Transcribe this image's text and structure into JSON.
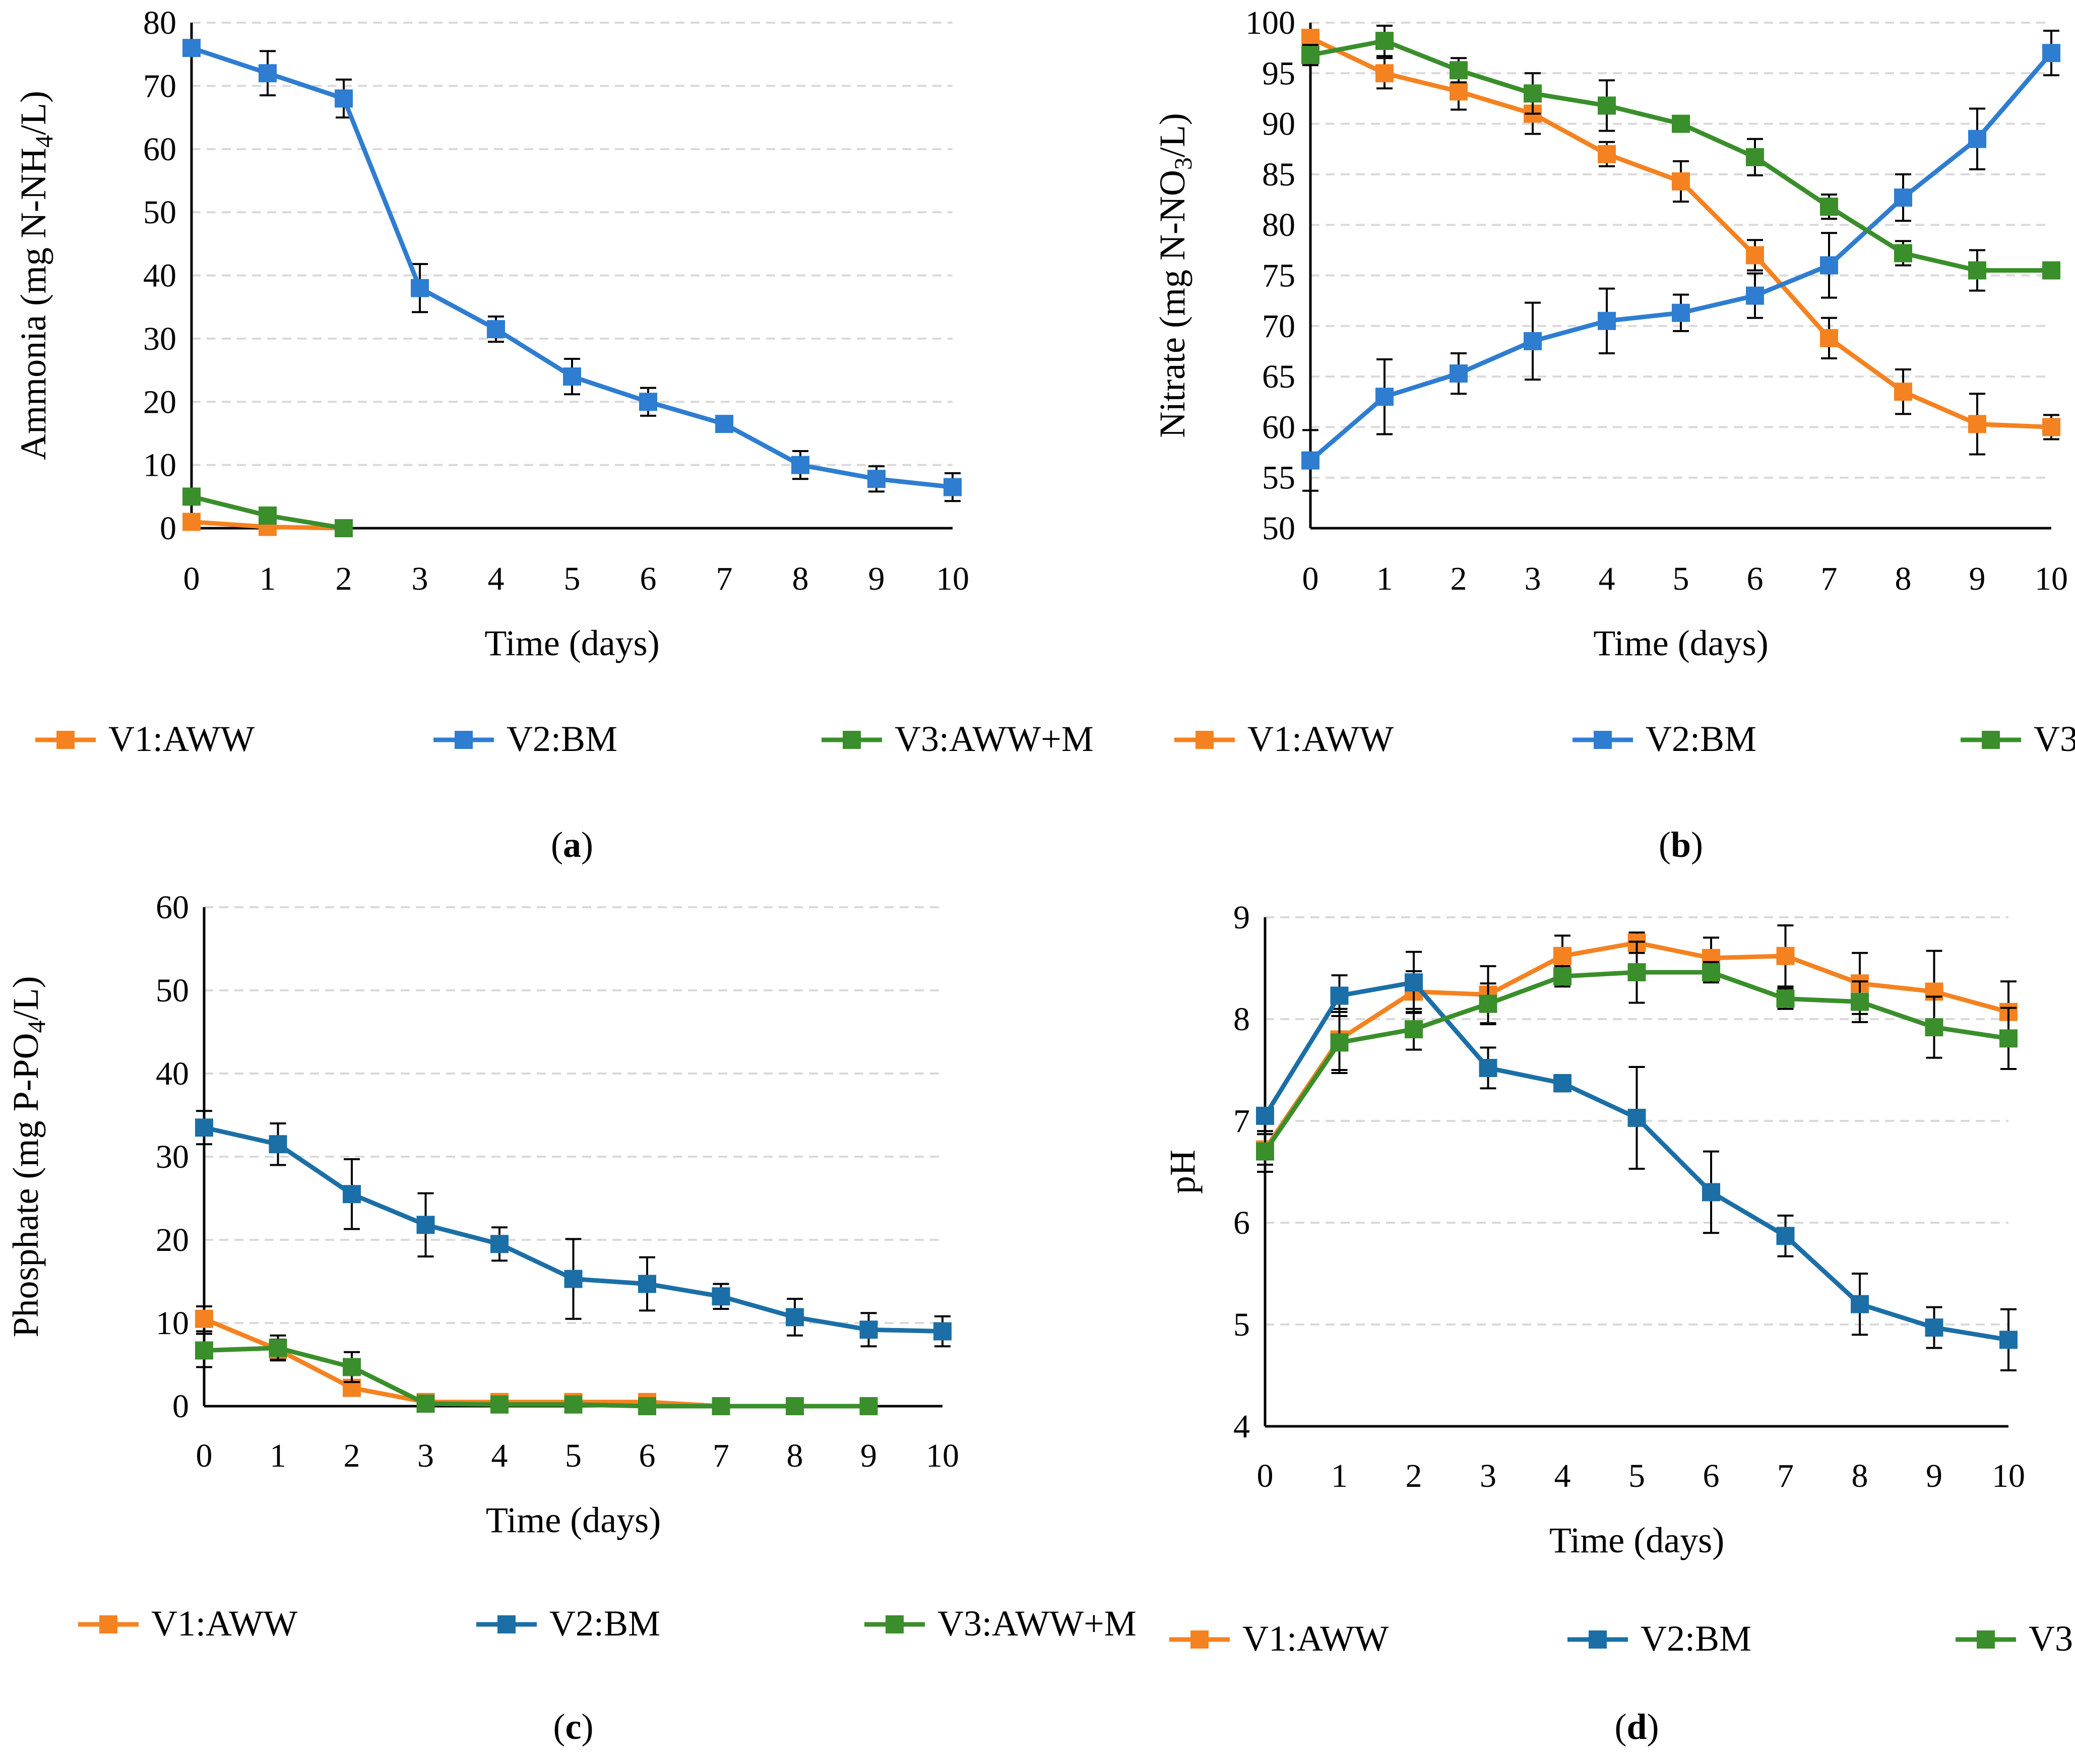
{
  "figure": {
    "legend": [
      "V1:AWW",
      "V2:BM",
      "V3:AWW+M"
    ],
    "colors": {
      "V1:AWW": "#f58220",
      "V2:BM": "#2e7dd1",
      "V2:BM_dark": "#1b6fa6",
      "V3:AWW+M": "#3a8e2b"
    }
  },
  "chart_data": [
    {
      "type": "line",
      "panel_label": "a",
      "xlabel": "Time (days)",
      "ylabel": "Ammonia (mg N-NH4/L)",
      "ylabel_main": "Ammonia (mg N-NH",
      "ylabel_sub": "4",
      "ylabel_tail": "/L)",
      "xlim": [
        0,
        10
      ],
      "ylim": [
        0,
        80
      ],
      "xticks": [
        0,
        1,
        2,
        3,
        4,
        5,
        6,
        7,
        8,
        9,
        10
      ],
      "yticks": [
        0,
        10,
        20,
        30,
        40,
        50,
        60,
        70,
        80
      ],
      "series": [
        {
          "name": "V1:AWW",
          "color": "#f58220",
          "x": [
            0,
            1,
            2
          ],
          "values": [
            1,
            0.2,
            0
          ],
          "errors": [
            0.5,
            0.3,
            0
          ]
        },
        {
          "name": "V2:BM",
          "color": "#2e7dd1",
          "x": [
            0,
            1,
            2,
            3,
            4,
            5,
            6,
            7,
            8,
            9,
            10
          ],
          "values": [
            76,
            72,
            68,
            38,
            31.5,
            24,
            20,
            16.5,
            10,
            7.8,
            6.5
          ],
          "errors": [
            0,
            3.5,
            3.0,
            3.8,
            2.0,
            2.8,
            2.2,
            1.2,
            2.2,
            2.0,
            2.2
          ]
        },
        {
          "name": "V3:AWW+M",
          "color": "#3a8e2b",
          "x": [
            0,
            1,
            2
          ],
          "values": [
            5,
            2,
            0
          ],
          "errors": [
            0.3,
            0.3,
            0
          ]
        }
      ]
    },
    {
      "type": "line",
      "panel_label": "b",
      "xlabel": "Time (days)",
      "ylabel": "Nitrate (mg N-NO3/L)",
      "ylabel_main": "Nitrate (mg N-NO",
      "ylabel_sub": "3",
      "ylabel_tail": "/L)",
      "xlim": [
        0,
        10
      ],
      "ylim": [
        50,
        100
      ],
      "xticks": [
        0,
        1,
        2,
        3,
        4,
        5,
        6,
        7,
        8,
        9,
        10
      ],
      "yticks": [
        50,
        55,
        60,
        65,
        70,
        75,
        80,
        85,
        90,
        95,
        100
      ],
      "series": [
        {
          "name": "V1:AWW",
          "color": "#f58220",
          "x": [
            0,
            1,
            2,
            3,
            4,
            5,
            6,
            7,
            8,
            9,
            10
          ],
          "values": [
            98.5,
            95,
            93.2,
            91,
            87,
            84.3,
            77,
            68.8,
            63.5,
            60.3,
            60
          ],
          "errors": [
            0.5,
            1.5,
            1.8,
            2.0,
            1.2,
            2.0,
            1.5,
            2.0,
            2.2,
            3.0,
            1.2
          ]
        },
        {
          "name": "V2:BM",
          "color": "#2e7dd1",
          "x": [
            0,
            1,
            2,
            3,
            4,
            5,
            6,
            7,
            8,
            9,
            10
          ],
          "values": [
            56.7,
            63,
            65.3,
            68.5,
            70.5,
            71.3,
            73,
            76,
            82.7,
            88.5,
            97
          ],
          "errors": [
            3.0,
            3.7,
            2.0,
            3.8,
            3.2,
            1.8,
            2.2,
            3.2,
            2.3,
            3.0,
            2.2
          ]
        },
        {
          "name": "V3:AWW+M",
          "color": "#3a8e2b",
          "x": [
            0,
            1,
            2,
            3,
            4,
            5,
            6,
            7,
            8,
            9,
            10
          ],
          "values": [
            96.8,
            98.2,
            95.3,
            93,
            91.8,
            90,
            86.7,
            81.8,
            77.2,
            75.5,
            75.5
          ],
          "errors": [
            1.0,
            1.5,
            1.2,
            2.0,
            2.5,
            0.5,
            1.8,
            1.2,
            1.2,
            2.0,
            0
          ]
        }
      ]
    },
    {
      "type": "line",
      "panel_label": "c",
      "xlabel": "Time (days)",
      "ylabel": "Phosphate (mg P-PO4/L)",
      "ylabel_main": "Phosphate (mg P-PO",
      "ylabel_sub": "4",
      "ylabel_tail": "/L)",
      "xlim": [
        0,
        10
      ],
      "ylim": [
        0,
        60
      ],
      "xticks": [
        0,
        1,
        2,
        3,
        4,
        5,
        6,
        7,
        8,
        9,
        10
      ],
      "yticks": [
        0,
        10,
        20,
        30,
        40,
        50,
        60
      ],
      "series": [
        {
          "name": "V1:AWW",
          "color": "#f58220",
          "x": [
            0,
            1,
            2,
            3,
            4,
            5,
            6,
            7
          ],
          "values": [
            10.5,
            6.8,
            2.2,
            0.5,
            0.5,
            0.5,
            0.5,
            0
          ],
          "errors": [
            1.5,
            1.2,
            0.8,
            0.3,
            0.3,
            0.3,
            0.3,
            0
          ]
        },
        {
          "name": "V2:BM",
          "color": "#1b6fa6",
          "x": [
            0,
            1,
            2,
            3,
            4,
            5,
            6,
            7,
            8,
            9,
            10
          ],
          "values": [
            33.5,
            31.5,
            25.5,
            21.8,
            19.5,
            15.3,
            14.7,
            13.2,
            10.7,
            9.2,
            9
          ],
          "errors": [
            2.0,
            2.5,
            4.2,
            3.8,
            2.0,
            4.8,
            3.2,
            1.5,
            2.2,
            2.0,
            1.8
          ]
        },
        {
          "name": "V3:AWW+M",
          "color": "#3a8e2b",
          "x": [
            0,
            1,
            2,
            3,
            4,
            5,
            6,
            7,
            8,
            9
          ],
          "values": [
            6.7,
            7,
            4.7,
            0.3,
            0.2,
            0.2,
            0,
            0,
            0,
            0
          ],
          "errors": [
            2.0,
            1.5,
            1.8,
            0.3,
            0.2,
            0.2,
            0,
            0,
            0,
            0
          ]
        }
      ]
    },
    {
      "type": "line",
      "panel_label": "d",
      "xlabel": "Time (days)",
      "ylabel": "pH",
      "ylabel_main": "pH",
      "ylabel_sub": "",
      "ylabel_tail": "",
      "xlim": [
        0,
        10
      ],
      "ylim": [
        4,
        9
      ],
      "xticks": [
        0,
        1,
        2,
        3,
        4,
        5,
        6,
        7,
        8,
        9,
        10
      ],
      "yticks": [
        4,
        5,
        6,
        7,
        8,
        9
      ],
      "series": [
        {
          "name": "V1:AWW",
          "color": "#f58220",
          "x": [
            0,
            1,
            2,
            3,
            4,
            5,
            6,
            7,
            8,
            9,
            10
          ],
          "values": [
            6.72,
            7.8,
            8.27,
            8.24,
            8.62,
            8.75,
            8.6,
            8.62,
            8.35,
            8.27,
            8.07
          ],
          "errors": [
            0.15,
            0.3,
            0.2,
            0.28,
            0.2,
            0.1,
            0.2,
            0.3,
            0.3,
            0.4,
            0.3
          ]
        },
        {
          "name": "V2:BM",
          "color": "#1b6fa6",
          "x": [
            0,
            1,
            2,
            3,
            4,
            5,
            6,
            7,
            8,
            9,
            10
          ],
          "values": [
            7.05,
            8.23,
            8.36,
            7.52,
            7.37,
            7.03,
            6.3,
            5.87,
            5.2,
            4.97,
            4.85
          ],
          "errors": [
            0,
            0.2,
            0.3,
            0.2,
            0.08,
            0.5,
            0.4,
            0.2,
            0.3,
            0.2,
            0.3
          ]
        },
        {
          "name": "V3:AWW+M",
          "color": "#3a8e2b",
          "x": [
            0,
            1,
            2,
            3,
            4,
            5,
            6,
            7,
            8,
            9,
            10
          ],
          "values": [
            6.7,
            7.77,
            7.9,
            8.15,
            8.42,
            8.46,
            8.46,
            8.2,
            8.17,
            7.92,
            7.81
          ],
          "errors": [
            0.2,
            0.3,
            0.2,
            0.2,
            0.1,
            0.3,
            0.1,
            0.1,
            0.2,
            0.3,
            0.3
          ]
        }
      ]
    }
  ]
}
